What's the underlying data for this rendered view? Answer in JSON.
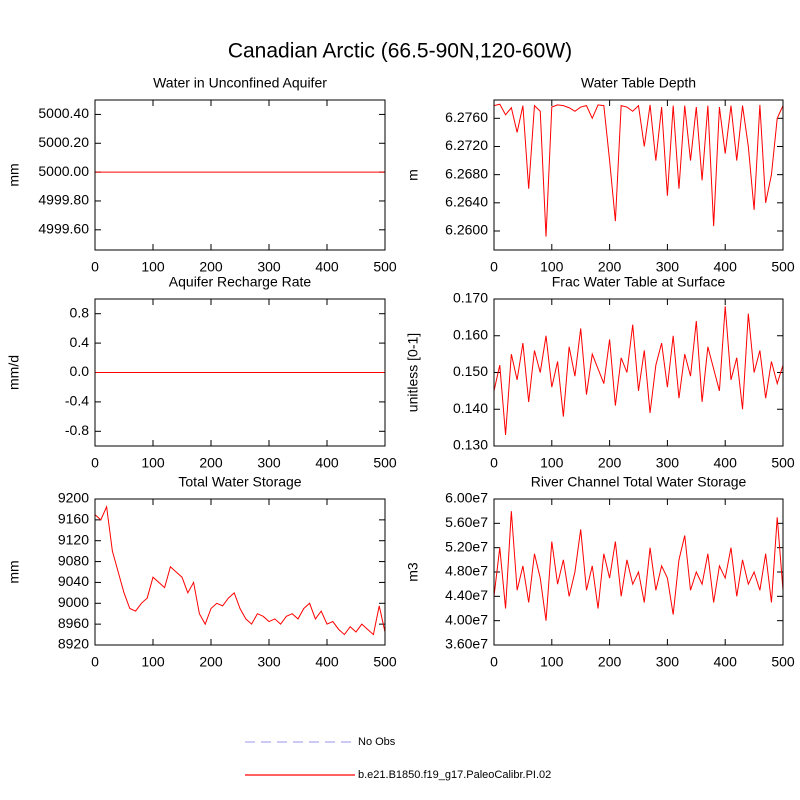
{
  "title": "Canadian Arctic (66.5-90N,120-60W)",
  "legend": [
    {
      "name": "No Obs",
      "color": "#aaaaee",
      "dashed": true
    },
    {
      "name": "b.e21.B1850.f19_g17.PaleoCalibr.PI.02",
      "color": "#ff0000",
      "dashed": false
    }
  ],
  "chart_data": [
    {
      "type": "line",
      "title": "Water in Unconfined Aquifer",
      "y_label": "mm",
      "xlim": [
        0,
        500
      ],
      "xticks": [
        0,
        100,
        200,
        300,
        400,
        500
      ],
      "ylim": [
        4999.46,
        5000.5
      ],
      "yticks": [
        {
          "value": 4999.6,
          "label": "4999.60"
        },
        {
          "value": 4999.8,
          "label": "4999.80"
        },
        {
          "value": 5000,
          "label": "5000.00"
        },
        {
          "value": 5000.2,
          "label": "5000.20"
        },
        {
          "value": 5000.4,
          "label": "5000.40"
        }
      ],
      "x": [
        0,
        500
      ],
      "series": [
        {
          "color": "#ff0000",
          "values": [
            5000,
            5000
          ]
        }
      ]
    },
    {
      "type": "line",
      "title": "Water Table Depth",
      "y_label": "m",
      "xlim": [
        0,
        500
      ],
      "xticks": [
        0,
        100,
        200,
        300,
        400,
        500
      ],
      "ylim": [
        6.2573,
        6.2786
      ],
      "yticks": [
        {
          "value": 6.26,
          "label": "6.2600"
        },
        {
          "value": 6.264,
          "label": "6.2640"
        },
        {
          "value": 6.268,
          "label": "6.2680"
        },
        {
          "value": 6.272,
          "label": "6.2720"
        },
        {
          "value": 6.276,
          "label": "6.2760"
        }
      ],
      "x": [
        0,
        10,
        20,
        30,
        40,
        50,
        60,
        70,
        80,
        90,
        100,
        110,
        120,
        130,
        140,
        150,
        160,
        170,
        180,
        190,
        200,
        210,
        220,
        230,
        240,
        250,
        260,
        270,
        280,
        290,
        300,
        310,
        320,
        330,
        340,
        350,
        360,
        370,
        380,
        390,
        400,
        410,
        420,
        430,
        440,
        450,
        460,
        470,
        480,
        490,
        500
      ],
      "series": [
        {
          "color": "#ff0000",
          "values": [
            6.2778,
            6.278,
            6.2765,
            6.2775,
            6.274,
            6.2778,
            6.266,
            6.2778,
            6.277,
            6.2592,
            6.2776,
            6.2779,
            6.2778,
            6.2775,
            6.277,
            6.2776,
            6.2778,
            6.276,
            6.2779,
            6.2778,
            6.27,
            6.2614,
            6.2778,
            6.2776,
            6.277,
            6.2778,
            6.272,
            6.2779,
            6.27,
            6.2776,
            6.265,
            6.2778,
            6.266,
            6.2778,
            6.27,
            6.2776,
            6.2672,
            6.2778,
            6.2607,
            6.2776,
            6.271,
            6.2778,
            6.27,
            6.2778,
            6.272,
            6.263,
            6.2779,
            6.264,
            6.268,
            6.276,
            6.2778
          ]
        }
      ]
    },
    {
      "type": "line",
      "title": "Aquifer Recharge Rate",
      "y_label": "mm/d",
      "xlim": [
        0,
        500
      ],
      "xticks": [
        0,
        100,
        200,
        300,
        400,
        500
      ],
      "ylim": [
        -1,
        1
      ],
      "yticks": [
        -0.8,
        -0.4,
        {
          "value": 0,
          "label": "0.0"
        },
        0.4,
        0.8
      ],
      "x": [
        0,
        500
      ],
      "series": [
        {
          "color": "#ff0000",
          "values": [
            0,
            0
          ]
        }
      ]
    },
    {
      "type": "line",
      "title": "Frac Water Table at Surface",
      "y_label": "unitless [0-1]",
      "xlim": [
        0,
        500
      ],
      "xticks": [
        0,
        100,
        200,
        300,
        400,
        500
      ],
      "ylim": [
        0.13,
        0.17
      ],
      "yticks": [
        {
          "value": 0.13,
          "label": "0.130"
        },
        {
          "value": 0.14,
          "label": "0.140"
        },
        {
          "value": 0.15,
          "label": "0.150"
        },
        {
          "value": 0.16,
          "label": "0.160"
        },
        {
          "value": 0.17,
          "label": "0.170"
        }
      ],
      "x": [
        0,
        10,
        20,
        30,
        40,
        50,
        60,
        70,
        80,
        90,
        100,
        110,
        120,
        130,
        140,
        150,
        160,
        170,
        180,
        190,
        200,
        210,
        220,
        230,
        240,
        250,
        260,
        270,
        280,
        290,
        300,
        310,
        320,
        330,
        340,
        350,
        360,
        370,
        380,
        390,
        400,
        410,
        420,
        430,
        440,
        450,
        460,
        470,
        480,
        490,
        500
      ],
      "series": [
        {
          "color": "#ff0000",
          "values": [
            0.145,
            0.152,
            0.133,
            0.155,
            0.148,
            0.158,
            0.142,
            0.156,
            0.15,
            0.16,
            0.146,
            0.153,
            0.138,
            0.157,
            0.149,
            0.162,
            0.144,
            0.155,
            0.151,
            0.147,
            0.159,
            0.141,
            0.154,
            0.15,
            0.163,
            0.145,
            0.156,
            0.139,
            0.152,
            0.158,
            0.146,
            0.16,
            0.143,
            0.155,
            0.149,
            0.164,
            0.142,
            0.157,
            0.151,
            0.145,
            0.168,
            0.148,
            0.154,
            0.14,
            0.166,
            0.15,
            0.156,
            0.143,
            0.153,
            0.147,
            0.152
          ]
        }
      ]
    },
    {
      "type": "line",
      "title": "Total Water Storage",
      "y_label": "mm",
      "xlim": [
        0,
        500
      ],
      "xticks": [
        0,
        100,
        200,
        300,
        400,
        500
      ],
      "ylim": [
        8920,
        9200
      ],
      "yticks": [
        8920,
        8960,
        9000,
        9040,
        9080,
        9120,
        9160,
        9200
      ],
      "x": [
        0,
        10,
        20,
        30,
        40,
        50,
        60,
        70,
        80,
        90,
        100,
        110,
        120,
        130,
        140,
        150,
        160,
        170,
        180,
        190,
        200,
        210,
        220,
        230,
        240,
        250,
        260,
        270,
        280,
        290,
        300,
        310,
        320,
        330,
        340,
        350,
        360,
        370,
        380,
        390,
        400,
        410,
        420,
        430,
        440,
        450,
        460,
        470,
        480,
        490,
        500
      ],
      "series": [
        {
          "color": "#ff0000",
          "values": [
            9170,
            9160,
            9185,
            9100,
            9060,
            9020,
            8990,
            8985,
            9000,
            9010,
            9050,
            9040,
            9030,
            9070,
            9060,
            9050,
            9020,
            9040,
            8980,
            8960,
            8990,
            9000,
            8995,
            9010,
            9020,
            8990,
            8970,
            8960,
            8980,
            8975,
            8965,
            8970,
            8960,
            8975,
            8980,
            8970,
            8990,
            9000,
            8970,
            8985,
            8960,
            8965,
            8950,
            8940,
            8955,
            8945,
            8960,
            8950,
            8940,
            8995,
            8945
          ]
        }
      ]
    },
    {
      "type": "line",
      "title": "River Channel Total Water Storage",
      "y_label": "m3",
      "xlim": [
        0,
        500
      ],
      "xticks": [
        0,
        100,
        200,
        300,
        400,
        500
      ],
      "ylim": [
        36000000,
        60000000
      ],
      "yticks": [
        {
          "value": 36000000,
          "label": "3.60e7"
        },
        {
          "value": 40000000,
          "label": "4.00e7"
        },
        {
          "value": 44000000,
          "label": "4.40e7"
        },
        {
          "value": 48000000,
          "label": "4.80e7"
        },
        {
          "value": 52000000,
          "label": "5.20e7"
        },
        {
          "value": 56000000,
          "label": "5.60e7"
        },
        {
          "value": 60000000,
          "label": "6.00e7"
        }
      ],
      "x": [
        0,
        10,
        20,
        30,
        40,
        50,
        60,
        70,
        80,
        90,
        100,
        110,
        120,
        130,
        140,
        150,
        160,
        170,
        180,
        190,
        200,
        210,
        220,
        230,
        240,
        250,
        260,
        270,
        280,
        290,
        300,
        310,
        320,
        330,
        340,
        350,
        360,
        370,
        380,
        390,
        400,
        410,
        420,
        430,
        440,
        450,
        460,
        470,
        480,
        490,
        500
      ],
      "series": [
        {
          "color": "#ff0000",
          "values": [
            44000000,
            52000000,
            42000000,
            58000000,
            45000000,
            49000000,
            43000000,
            51000000,
            47000000,
            40000000,
            53000000,
            46000000,
            50000000,
            44000000,
            48000000,
            55000000,
            45000000,
            49000000,
            42000000,
            51000000,
            47000000,
            53000000,
            44000000,
            50000000,
            46000000,
            48000000,
            43000000,
            52000000,
            45000000,
            49000000,
            47000000,
            41000000,
            50000000,
            54000000,
            45000000,
            48000000,
            46000000,
            51000000,
            43000000,
            49000000,
            47000000,
            52000000,
            44000000,
            50000000,
            46000000,
            48000000,
            45000000,
            51000000,
            43000000,
            57000000,
            45000000
          ]
        }
      ]
    }
  ]
}
